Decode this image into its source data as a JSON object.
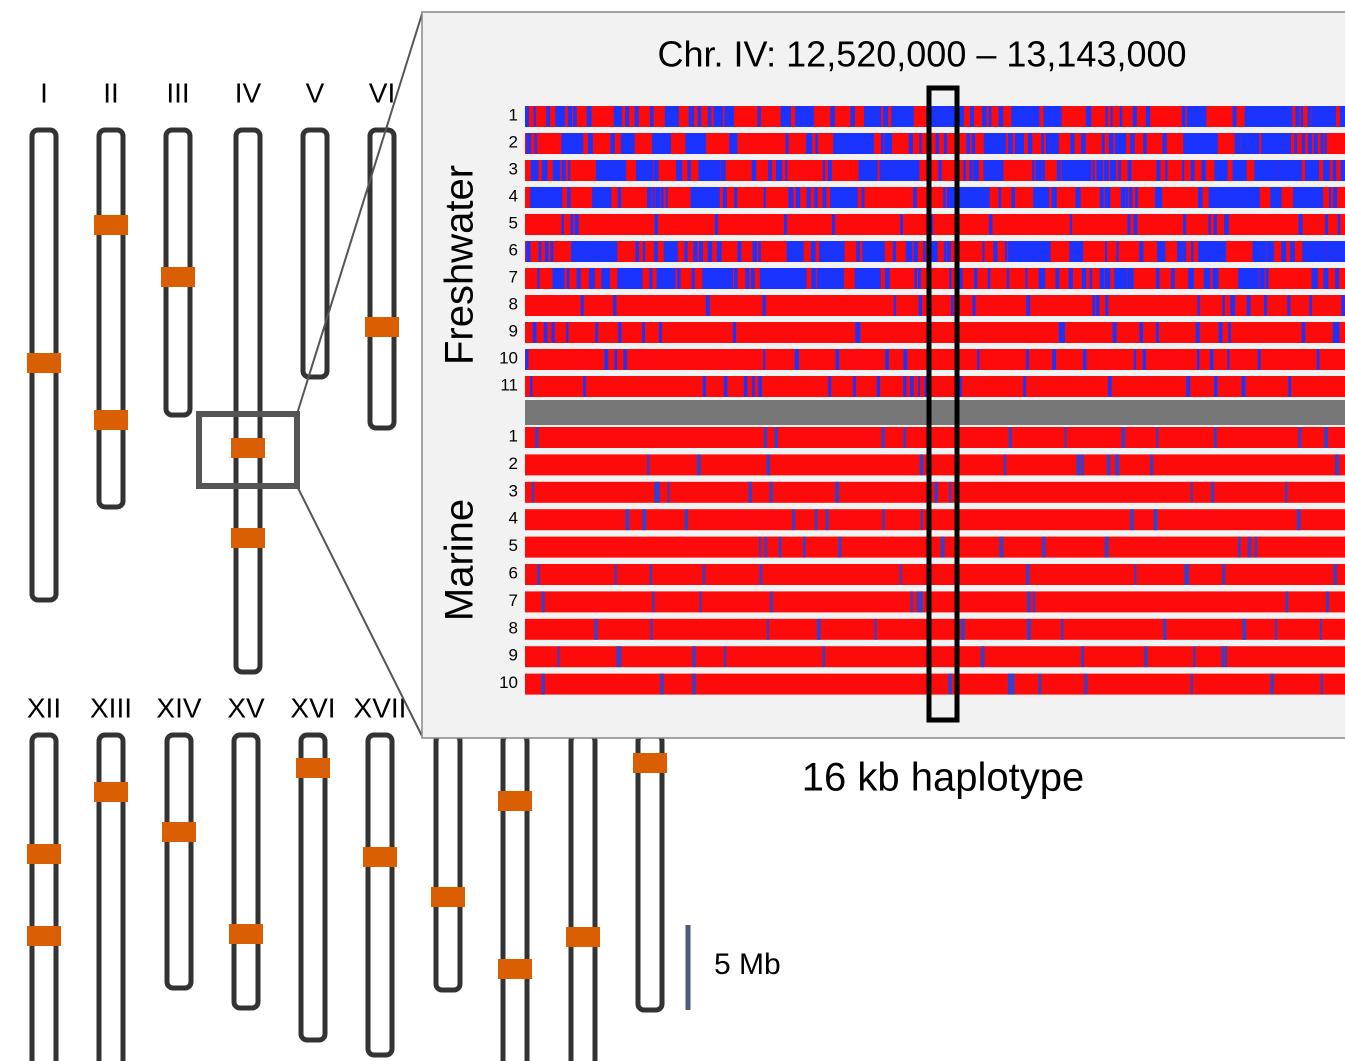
{
  "chromosomes_top": [
    "I",
    "II",
    "III",
    "IV",
    "V",
    "VI"
  ],
  "chromosomes_bottom": [
    "XII",
    "XIII",
    "XIV",
    "XV",
    "XVI",
    "XVII"
  ],
  "inset": {
    "title": "Chr. IV: 12,520,000 – 13,143,000",
    "groups": [
      {
        "label": "Freshwater",
        "rows": [
          1,
          2,
          3,
          4,
          5,
          6,
          7,
          8,
          9,
          10,
          11
        ]
      },
      {
        "label": "Marine",
        "rows": [
          1,
          2,
          3,
          4,
          5,
          6,
          7,
          8,
          9,
          10
        ]
      }
    ]
  },
  "haplotype_label": "16 kb haplotype",
  "scale_label": "5 Mb"
}
